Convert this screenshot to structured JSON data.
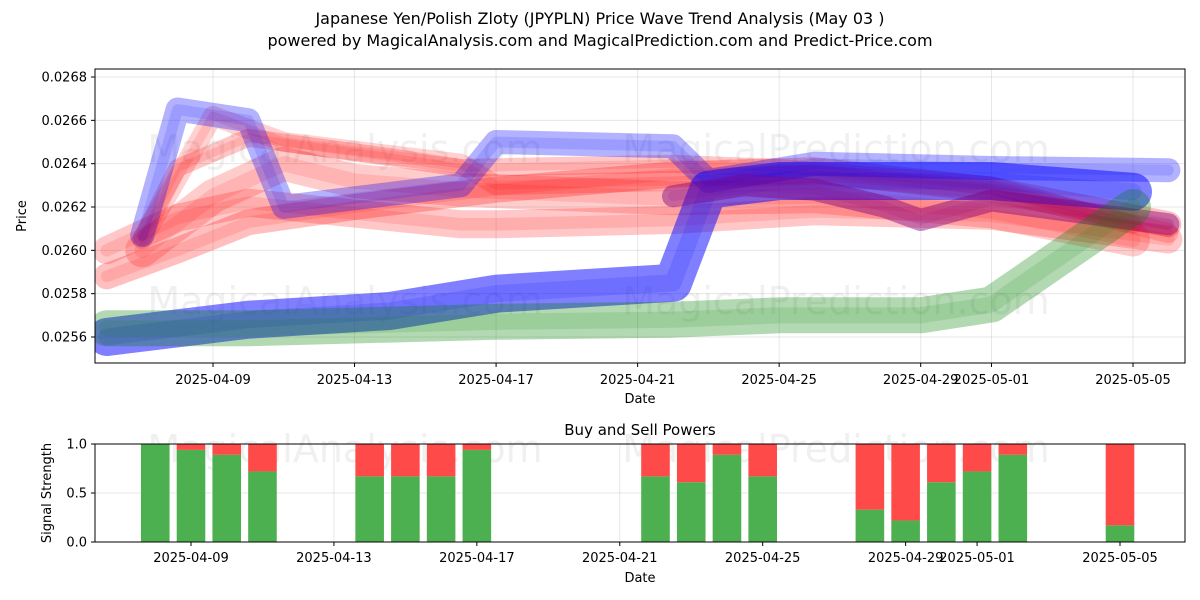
{
  "title_line1": "Japanese Yen/Polish Zloty (JPYPLN) Price Wave Trend Analysis (May 03 )",
  "title_line2": "powered by MagicalAnalysis.com and MagicalPrediction.com and Predict-Price.com",
  "watermarks": [
    "MagicalAnalysis.com",
    "MagicalPrediction.com"
  ],
  "colors": {
    "red": "#ff0000",
    "blue": "#0000ff",
    "green": "#008000",
    "purple": "#800080",
    "bar_buy": "#4caf50",
    "bar_sell": "#ff4a4a"
  },
  "chart_data": [
    {
      "type": "area",
      "title": "",
      "xlabel": "Date",
      "ylabel": "Price",
      "x_range": [
        "2025-04-05",
        "2025-05-06"
      ],
      "ylim": [
        0.02555,
        0.02685
      ],
      "x_ticks": [
        "2025-04-09",
        "2025-04-13",
        "2025-04-17",
        "2025-04-21",
        "2025-04-25",
        "2025-04-29",
        "2025-05-01",
        "2025-05-05"
      ],
      "y_ticks": [
        "0.0256",
        "0.0258",
        "0.0260",
        "0.0262",
        "0.0264",
        "0.0266",
        "0.0268"
      ],
      "grid": true,
      "series": [
        {
          "color": "red",
          "x": [
            "2025-04-07",
            "2025-04-08",
            "2025-04-10",
            "2025-04-14",
            "2025-04-16",
            "2025-04-22",
            "2025-04-25",
            "2025-05-01",
            "2025-05-05"
          ],
          "y": [
            0.02606,
            0.02638,
            0.02652,
            0.02643,
            0.02638,
            0.0264,
            0.02638,
            0.0263,
            0.02612
          ]
        },
        {
          "color": "red",
          "x": [
            "2025-04-06",
            "2025-04-08",
            "2025-04-10",
            "2025-04-13",
            "2025-04-17",
            "2025-04-22",
            "2025-04-26",
            "2025-05-01",
            "2025-05-06"
          ],
          "y": [
            0.02588,
            0.026,
            0.02613,
            0.0262,
            0.02628,
            0.02635,
            0.02637,
            0.02628,
            0.02612
          ]
        },
        {
          "color": "red",
          "x": [
            "2025-04-07",
            "2025-04-09",
            "2025-04-11",
            "2025-04-16",
            "2025-04-17",
            "2025-04-22",
            "2025-04-26",
            "2025-05-01",
            "2025-05-06"
          ],
          "y": [
            0.02605,
            0.02662,
            0.0265,
            0.0264,
            0.0263,
            0.02632,
            0.02635,
            0.02628,
            0.02608
          ]
        },
        {
          "color": "red",
          "x": [
            "2025-04-07",
            "2025-04-09",
            "2025-04-11",
            "2025-04-13",
            "2025-04-16",
            "2025-04-22",
            "2025-04-26",
            "2025-05-01",
            "2025-05-05"
          ],
          "y": [
            0.026,
            0.02625,
            0.0264,
            0.02632,
            0.02628,
            0.02624,
            0.02625,
            0.02618,
            0.02605
          ]
        },
        {
          "color": "red",
          "x": [
            "2025-04-06",
            "2025-04-08",
            "2025-04-10",
            "2025-04-16",
            "2025-04-17",
            "2025-04-22",
            "2025-04-26",
            "2025-05-01",
            "2025-05-06"
          ],
          "y": [
            0.026,
            0.02615,
            0.02622,
            0.02612,
            0.02612,
            0.02614,
            0.02618,
            0.02616,
            0.02605
          ]
        },
        {
          "color": "blue",
          "x": [
            "2025-04-07",
            "2025-04-08",
            "2025-04-10",
            "2025-04-11",
            "2025-04-16",
            "2025-04-17",
            "2025-04-22",
            "2025-04-23",
            "2025-04-26",
            "2025-05-01",
            "2025-05-06"
          ],
          "y": [
            0.02607,
            0.02665,
            0.0266,
            0.0262,
            0.0263,
            0.0265,
            0.02648,
            0.02632,
            0.0264,
            0.02638,
            0.02637
          ]
        },
        {
          "color": "blue",
          "x": [
            "2025-04-06",
            "2025-04-10",
            "2025-04-14",
            "2025-04-17",
            "2025-04-22",
            "2025-04-23",
            "2025-04-25",
            "2025-05-01",
            "2025-05-05"
          ],
          "y": [
            0.0256,
            0.02568,
            0.02572,
            0.0258,
            0.02585,
            0.02628,
            0.02632,
            0.02632,
            0.02627
          ]
        },
        {
          "color": "purple",
          "x": [
            "2025-04-22",
            "2025-04-24",
            "2025-04-26",
            "2025-04-28",
            "2025-04-29",
            "2025-05-01",
            "2025-05-06"
          ],
          "y": [
            0.02625,
            0.0263,
            0.02628,
            0.0262,
            0.02614,
            0.02623,
            0.02612
          ]
        },
        {
          "color": "green",
          "x": [
            "2025-04-06",
            "2025-04-10",
            "2025-04-17",
            "2025-04-22",
            "2025-04-25",
            "2025-04-29",
            "2025-05-01",
            "2025-05-05"
          ],
          "y": [
            0.02564,
            0.02564,
            0.02567,
            0.02568,
            0.0257,
            0.0257,
            0.02575,
            0.0262
          ]
        }
      ]
    },
    {
      "type": "bar",
      "title": "Buy and Sell Powers",
      "xlabel": "Date",
      "ylabel": "Signal Strength",
      "ylim": [
        0,
        1
      ],
      "y_ticks": [
        "0.0",
        "0.5",
        "1.0"
      ],
      "x_ticks": [
        "2025-04-09",
        "2025-04-13",
        "2025-04-17",
        "2025-04-21",
        "2025-04-25",
        "2025-04-29",
        "2025-05-01",
        "2025-05-05"
      ],
      "grid": true,
      "categories": [
        "2025-04-08",
        "2025-04-09",
        "2025-04-10",
        "2025-04-11",
        "2025-04-14",
        "2025-04-15",
        "2025-04-16",
        "2025-04-17",
        "2025-04-22",
        "2025-04-23",
        "2025-04-24",
        "2025-04-25",
        "2025-04-28",
        "2025-04-29",
        "2025-04-30",
        "2025-05-01",
        "2025-05-02",
        "2025-05-05"
      ],
      "buy": [
        1.0,
        0.94,
        0.89,
        0.72,
        0.67,
        0.67,
        0.67,
        0.94,
        0.67,
        0.61,
        0.89,
        0.67,
        0.33,
        0.22,
        0.61,
        0.72,
        0.89,
        0.17
      ],
      "sell": [
        0.0,
        0.06,
        0.11,
        0.28,
        0.33,
        0.33,
        0.33,
        0.06,
        0.33,
        0.39,
        0.11,
        0.33,
        0.67,
        0.78,
        0.39,
        0.28,
        0.11,
        0.83
      ]
    }
  ]
}
